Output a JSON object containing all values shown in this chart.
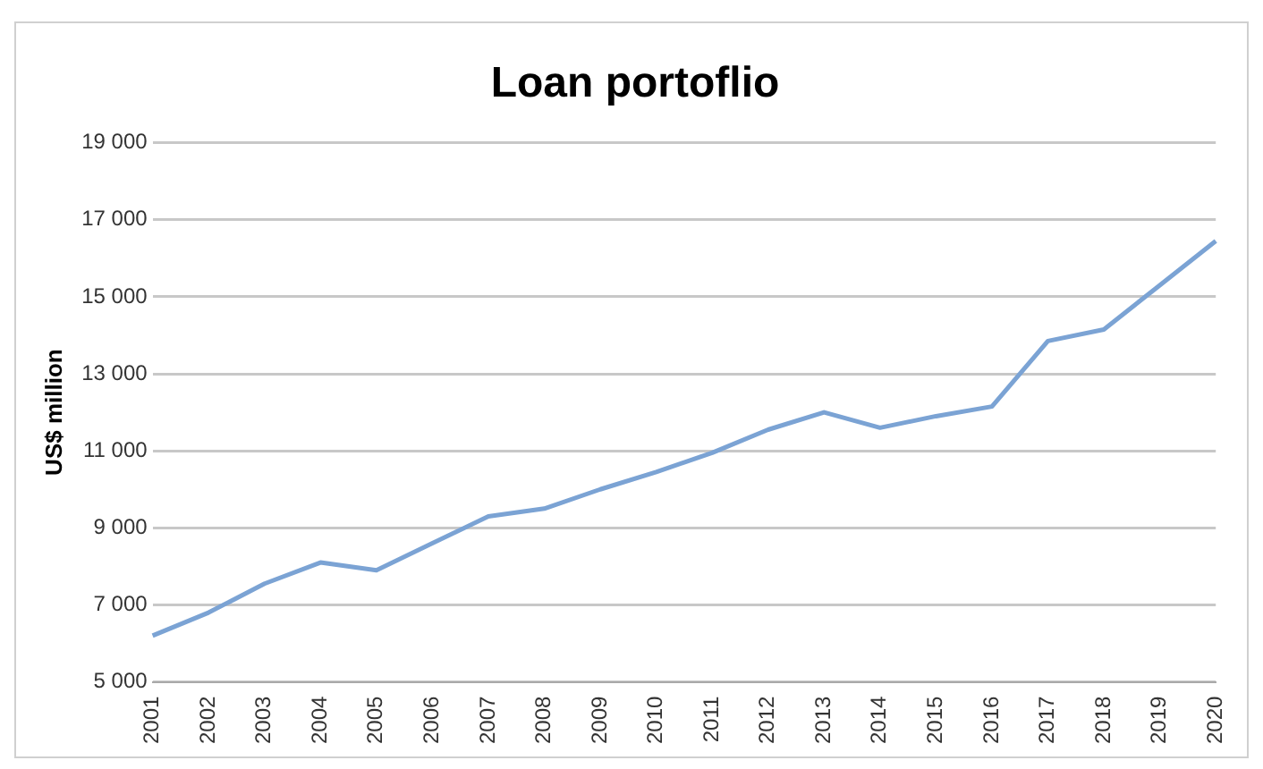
{
  "chart_data": {
    "type": "line",
    "title": "Loan portoflio",
    "ylabel": "US$ million",
    "categories": [
      "2001",
      "2002",
      "2003",
      "2004",
      "2005",
      "2006",
      "2007",
      "2008",
      "2009",
      "2010",
      "2011",
      "2012",
      "2013",
      "2014",
      "2015",
      "2016",
      "2017",
      "2018",
      "2019",
      "2020"
    ],
    "series": [
      {
        "color": "#7ba3d4",
        "values": [
          6200,
          6800,
          7550,
          8100,
          7900,
          8600,
          9300,
          9500,
          10000,
          10450,
          10950,
          11550,
          12000,
          11600,
          11900,
          12150,
          13850,
          14150,
          15300,
          16450
        ]
      }
    ],
    "ylim": [
      5000,
      19000
    ],
    "yticks": [
      {
        "value": 5000,
        "label": "5 000"
      },
      {
        "value": 7000,
        "label": "7 000"
      },
      {
        "value": 9000,
        "label": "9 000"
      },
      {
        "value": 11000,
        "label": "11 000"
      },
      {
        "value": 13000,
        "label": "13 000"
      },
      {
        "value": 15000,
        "label": "15 000"
      },
      {
        "value": 17000,
        "label": "17 000"
      },
      {
        "value": 19000,
        "label": "19 000"
      }
    ],
    "grid": "y",
    "legend": false,
    "marker": "none"
  }
}
